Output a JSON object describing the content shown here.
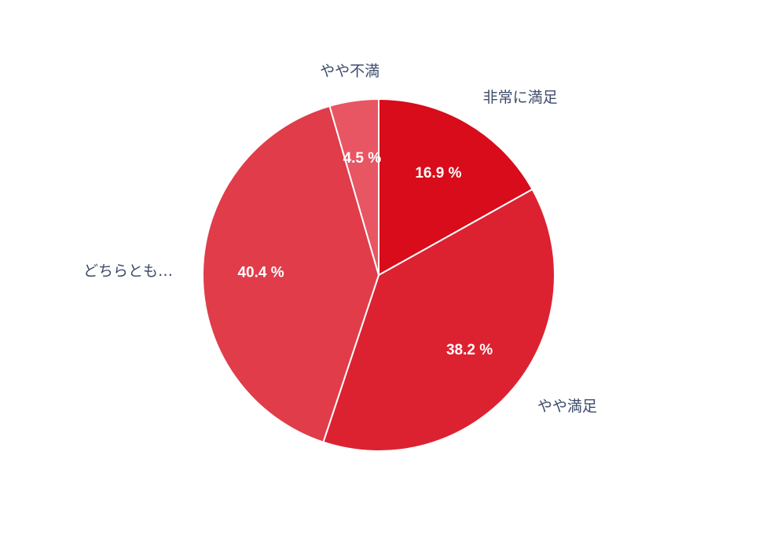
{
  "chart_data": {
    "type": "pie",
    "title": "",
    "start_angle_deg": 0,
    "direction": "clockwise",
    "slices": [
      {
        "label": "非常に満足",
        "value": 16.9,
        "display": "16.9 %",
        "color": "#d80c1a"
      },
      {
        "label": "やや満足",
        "value": 38.2,
        "display": "38.2 %",
        "color": "#dc2231"
      },
      {
        "label": "どちらとも…",
        "value": 40.4,
        "display": "40.4 %",
        "color": "#e03c4a"
      },
      {
        "label": "やや不満",
        "value": 4.5,
        "display": "4.5 %",
        "color": "#e85563"
      }
    ]
  }
}
